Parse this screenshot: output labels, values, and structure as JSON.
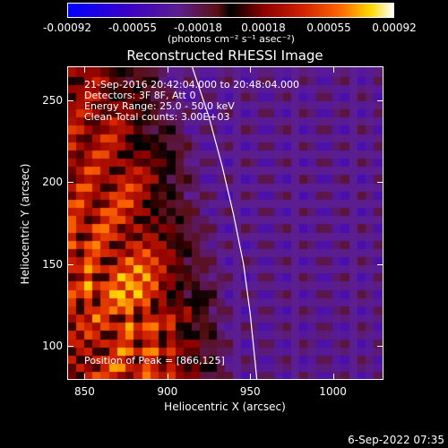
{
  "colorbar": {
    "ticks": [
      "-0.00092",
      "-0.00055",
      "-0.00018",
      "0.00018",
      "0.00055",
      "0.00092"
    ],
    "units_label": "(photons cm⁻² s⁻¹ asec⁻²)"
  },
  "title": "Reconstructed RHESSI Image",
  "annotations": {
    "time_range": "21-Sep-2016 20:42:04.000 to 20:48:04.000",
    "detectors": "Detectors: 3F 8F, Att 0",
    "energy_range": "Energy Range: 25.0 - 50.0 keV",
    "clean_counts": "Clean     Total counts: 3.00E+03",
    "peak": "Position of Peak = [866,125]"
  },
  "footer": {
    "timestamp": "6-Sep-2022 07:35"
  },
  "chart_data": {
    "type": "heatmap",
    "title": "Reconstructed RHESSI Image",
    "xlabel": "Heliocentric X (arcsec)",
    "ylabel": "Heliocentric Y (arcsec)",
    "xlim": [
      840,
      1030
    ],
    "ylim": [
      80,
      270
    ],
    "xticks": [
      850,
      900,
      950,
      1000
    ],
    "yticks": [
      100,
      150,
      200,
      250
    ],
    "color_range": [
      -0.00092,
      0.00092
    ],
    "colorscale": "blue-purple-black-red-yellow-white",
    "peak_position": [
      866,
      125
    ],
    "limb_curve": [
      [
        915,
        270
      ],
      [
        925,
        240
      ],
      [
        933,
        210
      ],
      [
        940,
        180
      ],
      [
        946,
        150
      ],
      [
        950,
        120
      ],
      [
        953,
        90
      ],
      [
        954,
        80
      ]
    ]
  }
}
